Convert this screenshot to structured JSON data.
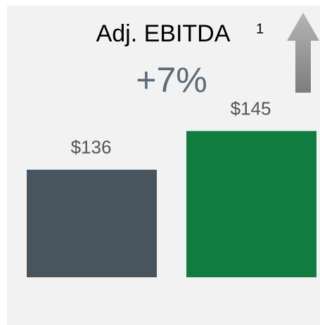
{
  "chart_data": {
    "type": "bar",
    "title": "Adj. EBITDA",
    "title_superscript": "1",
    "annotation": "+7%",
    "values": [
      136,
      145
    ],
    "value_labels": [
      "$136",
      "$145"
    ],
    "colors": [
      "#48555f",
      "#117c3f"
    ],
    "ylim": [
      111,
      150
    ]
  }
}
